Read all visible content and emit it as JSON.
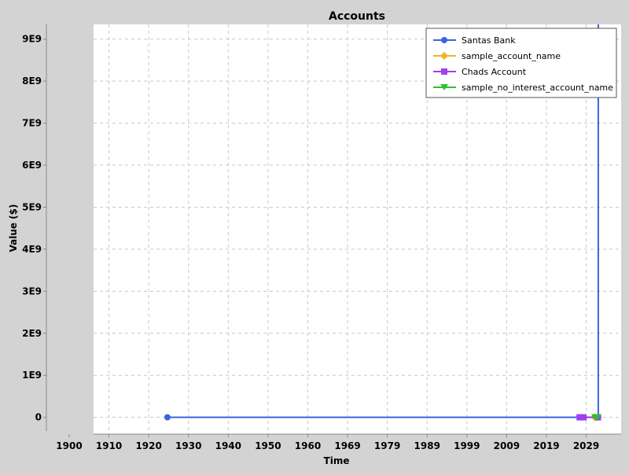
{
  "chart_data": {
    "type": "line",
    "title": "Accounts",
    "xlabel": "Time",
    "ylabel": "Value ($)",
    "x_tick_labels": [
      "1900",
      "1910",
      "1920",
      "1930",
      "1940",
      "1950",
      "1960",
      "1969",
      "1979",
      "1989",
      "1999",
      "2009",
      "2019",
      "2029"
    ],
    "y_tick_labels": [
      "0",
      "1E9",
      "2E9",
      "3E9",
      "4E9",
      "5E9",
      "6E9",
      "7E9",
      "8E9",
      "9E9"
    ],
    "y_ticks": [
      0,
      1000000000,
      2000000000,
      3000000000,
      4000000000,
      5000000000,
      6000000000,
      7000000000,
      8000000000,
      9000000000
    ],
    "xlim": [
      1890,
      2040
    ],
    "ylim": [
      -400000000,
      9350000000
    ],
    "grid": true,
    "legend_position": "top-right",
    "background_color": "#ffffff",
    "series": [
      {
        "name": "Santas Bank",
        "color": "#3b64e0",
        "marker": "circle",
        "points": [
          [
            1911,
            0
          ],
          [
            2033.5,
            0
          ],
          [
            2033.5,
            9500000000
          ]
        ]
      },
      {
        "name": "sample_account_name",
        "color": "#f0b323",
        "marker": "diamond",
        "points": [
          [
            2032.5,
            0
          ],
          [
            2033.3,
            0
          ]
        ]
      },
      {
        "name": "Chads Account",
        "color": "#a040f0",
        "marker": "square",
        "points": [
          [
            2028.2,
            0
          ],
          [
            2029.3,
            0
          ],
          [
            2033.4,
            0
          ]
        ]
      },
      {
        "name": "sample_no_interest_account_name",
        "color": "#30c030",
        "marker": "triangle-down",
        "points": [
          [
            2032.6,
            0
          ],
          [
            2033.2,
            0
          ]
        ]
      }
    ]
  }
}
